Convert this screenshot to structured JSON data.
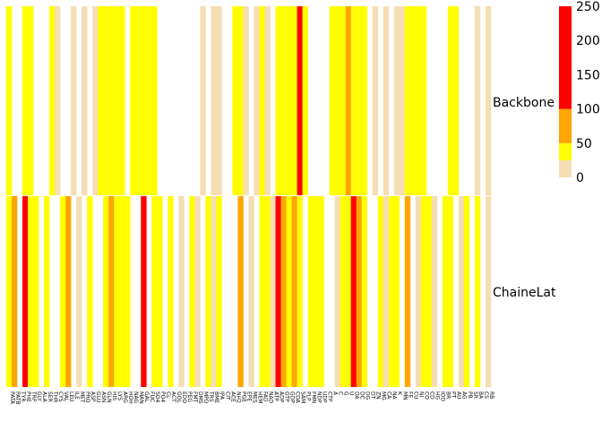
{
  "chart_data": {
    "type": "heatmap",
    "title": "",
    "xlabel": "",
    "ylabel": "",
    "rows": [
      "Backbone",
      "ChaineLat"
    ],
    "column_count": 90,
    "value_range": [
      0,
      250
    ],
    "bins": [
      {
        "from": 0,
        "to": 25,
        "color": "#F5DEB3"
      },
      {
        "from": 25,
        "to": 50,
        "color": "#FFFF00"
      },
      {
        "from": 50,
        "to": 100,
        "color": "#FFA500"
      },
      {
        "from": 100,
        "to": 250,
        "color": "#FF0000"
      }
    ],
    "legend_ticks": [
      "0",
      "50",
      "100",
      "150",
      "200",
      "250"
    ],
    "legend_tick_values": [
      0,
      50,
      100,
      150,
      200,
      250
    ],
    "legend_position": "right",
    "values": [
      [
        30,
        0,
        0,
        35,
        35,
        0,
        0,
        0,
        35,
        20,
        0,
        0,
        20,
        0,
        20,
        0,
        20,
        35,
        35,
        35,
        30,
        35,
        0,
        35,
        35,
        30,
        35,
        35,
        0,
        0,
        0,
        0,
        0,
        0,
        0,
        0,
        20,
        0,
        20,
        20,
        0,
        0,
        35,
        35,
        20,
        0,
        20,
        35,
        20,
        0,
        35,
        35,
        35,
        35,
        120,
        35,
        0,
        0,
        0,
        0,
        35,
        35,
        35,
        80,
        35,
        35,
        35,
        0,
        20,
        0,
        20,
        0,
        20,
        20,
        35,
        35,
        35,
        35,
        0,
        0,
        0,
        0,
        35,
        35,
        0,
        0,
        0,
        20,
        0,
        20
      ],
      [
        30,
        80,
        0,
        150,
        30,
        30,
        0,
        35,
        0,
        0,
        35,
        60,
        0,
        20,
        0,
        35,
        0,
        0,
        30,
        80,
        30,
        35,
        30,
        0,
        0,
        130,
        0,
        35,
        35,
        0,
        35,
        0,
        20,
        0,
        35,
        20,
        0,
        35,
        20,
        35,
        0,
        0,
        0,
        60,
        0,
        20,
        0,
        35,
        35,
        20,
        150,
        80,
        30,
        60,
        35,
        0,
        35,
        35,
        35,
        0,
        0,
        20,
        35,
        35,
        150,
        80,
        35,
        0,
        0,
        30,
        20,
        35,
        35,
        0,
        80,
        0,
        20,
        35,
        35,
        20,
        0,
        35,
        35,
        0,
        20,
        35,
        0,
        35,
        0,
        20
      ]
    ],
    "column_labels": [
      "PATA",
      "PATB",
      "TYR",
      "PHE",
      "TRP",
      "GLY",
      "ALA",
      "SER",
      "THR",
      "CYS",
      "VAL",
      "LEU",
      "ILE",
      "MET",
      "PRO",
      "ASP",
      "GLU",
      "ASN",
      "GLN",
      "HIS",
      "LYS",
      "ARG",
      "HOH",
      "NAG",
      "MAN",
      "GAL",
      "FUC",
      "SO4",
      "PO4",
      "CL",
      "ACT",
      "GOL",
      "EDO",
      "PEG",
      "FMT",
      "DMS",
      "MPD",
      "TRS",
      "BME",
      "IPA",
      "CIT",
      "ACE",
      "NH2",
      "PGE",
      "EPE",
      "MES",
      "HEM",
      "FAD",
      "NAD",
      "ATP",
      "ADP",
      "GTP",
      "GDP",
      "COA",
      "SAM",
      "PLP",
      "FMN",
      "NDP",
      "UDP",
      "CTP",
      "A",
      "C",
      "G",
      "U",
      "DA",
      "DC",
      "DG",
      "DT",
      "ZN",
      "MG",
      "CA",
      "NA",
      "K",
      "MN",
      "FE",
      "CU",
      "NI",
      "CO",
      "CD",
      "HG",
      "IOD",
      "BR",
      "PT",
      "AU",
      "AG",
      "PB",
      "SR",
      "BA",
      "CS",
      "RB"
    ]
  }
}
